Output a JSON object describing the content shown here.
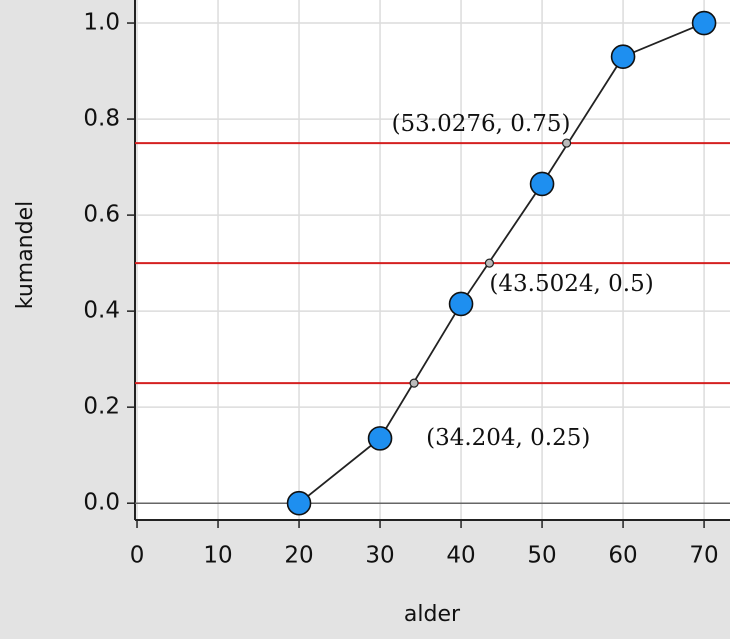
{
  "chart_data": {
    "type": "line",
    "x_label": "alder",
    "y_label": "kumandel",
    "x": [
      20,
      30,
      40,
      50,
      60,
      70
    ],
    "series": [
      {
        "color": "#1e8ff0",
        "values": [
          0,
          0.135,
          0.415,
          0.665,
          0.93,
          1
        ]
      }
    ],
    "xlim": [
      -0.25,
      73.2
    ],
    "ylim": [
      -0.035,
      1.048
    ],
    "xticks": [
      0,
      10,
      20,
      30,
      40,
      50,
      60,
      70
    ],
    "yticks": [
      {
        "value": 0,
        "label": "0.0"
      },
      {
        "value": 0.2,
        "label": "0.2"
      },
      {
        "value": 0.4,
        "label": "0.4"
      },
      {
        "value": 0.6,
        "label": "0.6"
      },
      {
        "value": 0.8,
        "label": "0.8"
      },
      {
        "value": 1,
        "label": "1.0"
      }
    ],
    "grid": true,
    "hlines": {
      "color": "#d42020",
      "values": [
        0.25,
        0.5,
        0.75
      ]
    },
    "annotations": [
      {
        "text": "(34.204, 0.25)",
        "x": 34.204,
        "y": 0.25
      },
      {
        "text": "(43.5024, 0.5)",
        "x": 43.5024,
        "y": 0.5
      },
      {
        "text": "(53.0276, 0.75)",
        "x": 53.0276,
        "y": 0.75
      }
    ]
  }
}
